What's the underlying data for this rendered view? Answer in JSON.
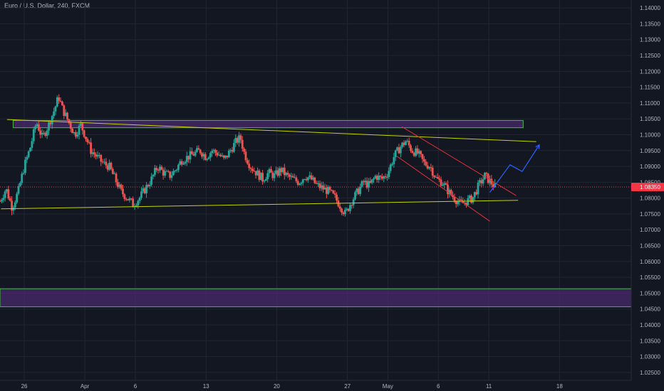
{
  "chart_data": {
    "type": "candlestick",
    "title": "Euro / U.S. Dollar, 240, FXCM",
    "symbol": "Euro / U.S. Dollar",
    "interval": "240",
    "source": "FXCM",
    "current_price": "1.08350",
    "y_range": [
      1.0225,
      1.1425
    ],
    "y_ticks": [
      "1.14000",
      "1.13500",
      "1.13000",
      "1.12500",
      "1.12000",
      "1.11500",
      "1.11000",
      "1.10500",
      "1.10000",
      "1.09500",
      "1.09000",
      "1.08500",
      "1.08000",
      "1.07500",
      "1.07000",
      "1.06500",
      "1.06000",
      "1.05500",
      "1.05000",
      "1.04500",
      "1.04000",
      "1.03500",
      "1.03000",
      "1.02500"
    ],
    "x_ticks": [
      {
        "label": "26",
        "day": 0
      },
      {
        "label": "Apr",
        "day": 6
      },
      {
        "label": "6",
        "day": 11
      },
      {
        "label": "13",
        "day": 18
      },
      {
        "label": "20",
        "day": 25
      },
      {
        "label": "27",
        "day": 32
      },
      {
        "label": "May",
        "day": 36
      },
      {
        "label": "6",
        "day": 41
      },
      {
        "label": "11",
        "day": 46
      },
      {
        "label": "18",
        "day": 53
      }
    ],
    "x_range_days": [
      -2.4,
      60.1
    ],
    "grid": true,
    "price_path": [
      [
        -2.4,
        1.079
      ],
      [
        -1.8,
        1.083
      ],
      [
        -1.2,
        1.077
      ],
      [
        -0.6,
        1.082
      ],
      [
        0,
        1.09
      ],
      [
        0.6,
        1.096
      ],
      [
        1.2,
        1.104
      ],
      [
        1.8,
        1.099
      ],
      [
        2.4,
        1.103
      ],
      [
        3,
        1.108
      ],
      [
        3.4,
        1.112
      ],
      [
        3.8,
        1.108
      ],
      [
        4.4,
        1.104
      ],
      [
        5,
        1.1
      ],
      [
        5.6,
        1.103
      ],
      [
        6,
        1.1
      ],
      [
        6.6,
        1.095
      ],
      [
        7.2,
        1.093
      ],
      [
        7.8,
        1.091
      ],
      [
        8.4,
        1.09
      ],
      [
        9,
        1.086
      ],
      [
        9.6,
        1.082
      ],
      [
        10.2,
        1.08
      ],
      [
        10.8,
        1.078
      ],
      [
        11.4,
        1.08
      ],
      [
        12,
        1.083
      ],
      [
        12.6,
        1.086
      ],
      [
        13.2,
        1.09
      ],
      [
        13.8,
        1.088
      ],
      [
        14.4,
        1.087
      ],
      [
        15,
        1.089
      ],
      [
        15.6,
        1.092
      ],
      [
        16.2,
        1.093
      ],
      [
        16.8,
        1.094
      ],
      [
        17.4,
        1.095
      ],
      [
        18,
        1.093
      ],
      [
        18.6,
        1.095
      ],
      [
        19.2,
        1.094
      ],
      [
        19.8,
        1.092
      ],
      [
        20.4,
        1.095
      ],
      [
        21,
        1.098
      ],
      [
        21.4,
        1.099
      ],
      [
        21.8,
        1.094
      ],
      [
        22.4,
        1.09
      ],
      [
        23,
        1.088
      ],
      [
        23.6,
        1.086
      ],
      [
        24.2,
        1.088
      ],
      [
        24.8,
        1.087
      ],
      [
        25.4,
        1.089
      ],
      [
        26,
        1.087
      ],
      [
        26.6,
        1.086
      ],
      [
        27.2,
        1.085
      ],
      [
        27.8,
        1.087
      ],
      [
        28.4,
        1.086
      ],
      [
        29,
        1.084
      ],
      [
        29.6,
        1.083
      ],
      [
        30.2,
        1.082
      ],
      [
        30.8,
        1.08
      ],
      [
        31.4,
        1.077
      ],
      [
        31.8,
        1.075
      ],
      [
        32.4,
        1.079
      ],
      [
        33,
        1.082
      ],
      [
        33.6,
        1.085
      ],
      [
        34.2,
        1.084
      ],
      [
        34.8,
        1.087
      ],
      [
        35.4,
        1.086
      ],
      [
        36,
        1.088
      ],
      [
        36.6,
        1.093
      ],
      [
        37.2,
        1.096
      ],
      [
        37.8,
        1.098
      ],
      [
        38.4,
        1.095
      ],
      [
        39,
        1.094
      ],
      [
        39.6,
        1.091
      ],
      [
        40.2,
        1.09
      ],
      [
        40.8,
        1.086
      ],
      [
        41.4,
        1.085
      ],
      [
        42,
        1.082
      ],
      [
        42.6,
        1.08
      ],
      [
        43.2,
        1.078
      ],
      [
        43.8,
        1.079
      ],
      [
        44.4,
        1.08
      ],
      [
        45,
        1.084
      ],
      [
        45.6,
        1.087
      ],
      [
        46.2,
        1.085
      ],
      [
        46.6,
        1.0835
      ]
    ],
    "colors": {
      "background": "#131722",
      "grid": "#232632",
      "up": "#26a69a",
      "down": "#ef5350",
      "zone_fill": "#4a2a6e",
      "zone_border": "#3fbf3f",
      "trendline": "#c8d400",
      "channel": "#e0303a",
      "projection": "#2962ff",
      "price_line": "#f23645",
      "axis_text": "#b2b5be"
    },
    "annotations": {
      "zones": [
        {
          "from_day": -1.1,
          "to_day": 49.4,
          "low": 1.1022,
          "high": 1.1045
        },
        {
          "from_day": -3,
          "to_day": 60.1,
          "low": 1.0457,
          "high": 1.0514
        }
      ],
      "trendlines": [
        {
          "day1": -1.7,
          "price1": 1.1048,
          "day2": 50.7,
          "price2": 1.0978
        },
        {
          "day1": -2.3,
          "price1": 1.0766,
          "day2": 48.9,
          "price2": 1.0793
        }
      ],
      "channel_lines": [
        {
          "day1": 37.4,
          "price1": 1.1025,
          "day2": 48.7,
          "price2": 1.0808
        },
        {
          "day1": 36.9,
          "price1": 1.0932,
          "day2": 46.1,
          "price2": 1.0727
        }
      ],
      "projection_path": [
        [
          46.1,
          1.0818
        ],
        [
          48.1,
          1.0905
        ],
        [
          49.3,
          1.0884
        ],
        [
          51.0,
          1.0968
        ]
      ]
    }
  }
}
